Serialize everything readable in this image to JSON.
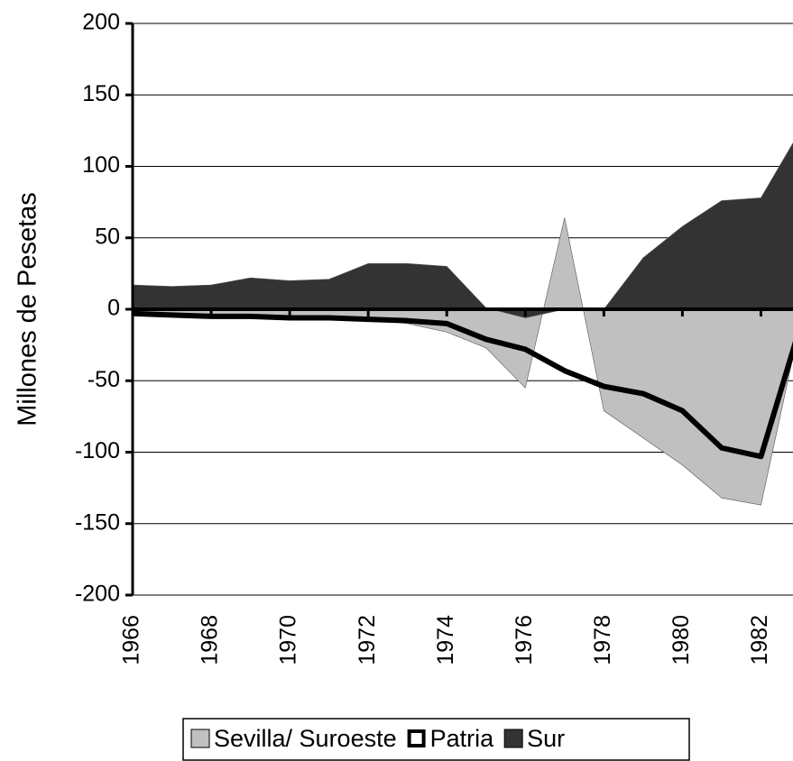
{
  "chart_data": {
    "type": "area",
    "y_label": "Millones de Pesetas",
    "x": [
      1966,
      1967,
      1968,
      1969,
      1970,
      1971,
      1972,
      1973,
      1974,
      1975,
      1976,
      1977,
      1978,
      1979,
      1980,
      1981,
      1982,
      1983
    ],
    "series": [
      {
        "name": "Sevilla/ Suroeste",
        "color": "#c0c0c0",
        "kind": "area",
        "values": [
          -2,
          -4,
          -5,
          -5,
          -6,
          -6,
          -7,
          -10,
          -16,
          -27,
          -55,
          64,
          -71,
          -90,
          -109,
          -132,
          -137,
          -10
        ]
      },
      {
        "name": "Patria",
        "color": "#000000",
        "kind": "line",
        "values": [
          -3,
          -4,
          -5,
          -5,
          -6,
          -6,
          -7,
          -8,
          -10,
          -21,
          -28,
          -43,
          -54,
          -59,
          -71,
          -97,
          -103,
          -12
        ]
      },
      {
        "name": "Sur",
        "color": "#333333",
        "kind": "area",
        "values": [
          17,
          16,
          17,
          22,
          20,
          21,
          32,
          32,
          30,
          1,
          -6,
          0,
          0,
          36,
          58,
          76,
          78,
          125
        ]
      }
    ],
    "xlim": [
      1966,
      1983
    ],
    "xticks": [
      1966,
      1968,
      1970,
      1972,
      1974,
      1976,
      1978,
      1980,
      1982
    ],
    "ylim": [
      -200,
      200
    ],
    "yticks": [
      -200,
      -150,
      -100,
      -50,
      0,
      50,
      100,
      150,
      200
    ],
    "grid": true,
    "legend": "bottom"
  }
}
